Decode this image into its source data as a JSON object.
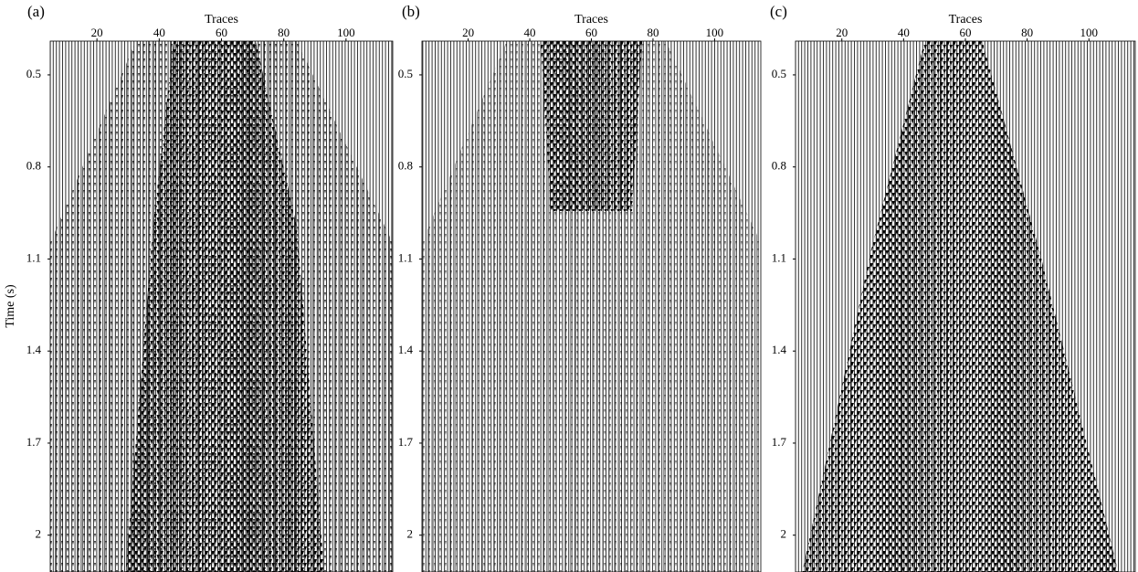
{
  "chart_data": [
    {
      "type": "seismic",
      "title": "(a)",
      "x_label": "Traces",
      "y_label": "Time (s)",
      "xlim": [
        5,
        115
      ],
      "ylim": [
        0.39,
        2.12
      ],
      "y_inverted": true,
      "xticks": [
        20,
        40,
        60,
        80,
        100
      ],
      "yticks": [
        0.5,
        0.8,
        1.1,
        1.4,
        1.7,
        2.0
      ]
    },
    {
      "type": "seismic",
      "title": "(b)",
      "x_label": "Traces",
      "xlim": [
        5,
        115
      ],
      "ylim": [
        0.39,
        2.12
      ],
      "y_inverted": true,
      "xticks": [
        20,
        40,
        60,
        80,
        100
      ],
      "yticks": [
        0.5,
        0.8,
        1.1,
        1.4,
        1.7,
        2.0
      ]
    },
    {
      "type": "seismic",
      "title": "(c)",
      "x_label": "Traces",
      "xlim": [
        5,
        115
      ],
      "ylim": [
        0.39,
        2.12
      ],
      "y_inverted": true,
      "xticks": [
        20,
        40,
        60,
        80,
        100
      ],
      "yticks": [
        0.5,
        0.8,
        1.1,
        1.4,
        1.7,
        2.0
      ]
    }
  ]
}
